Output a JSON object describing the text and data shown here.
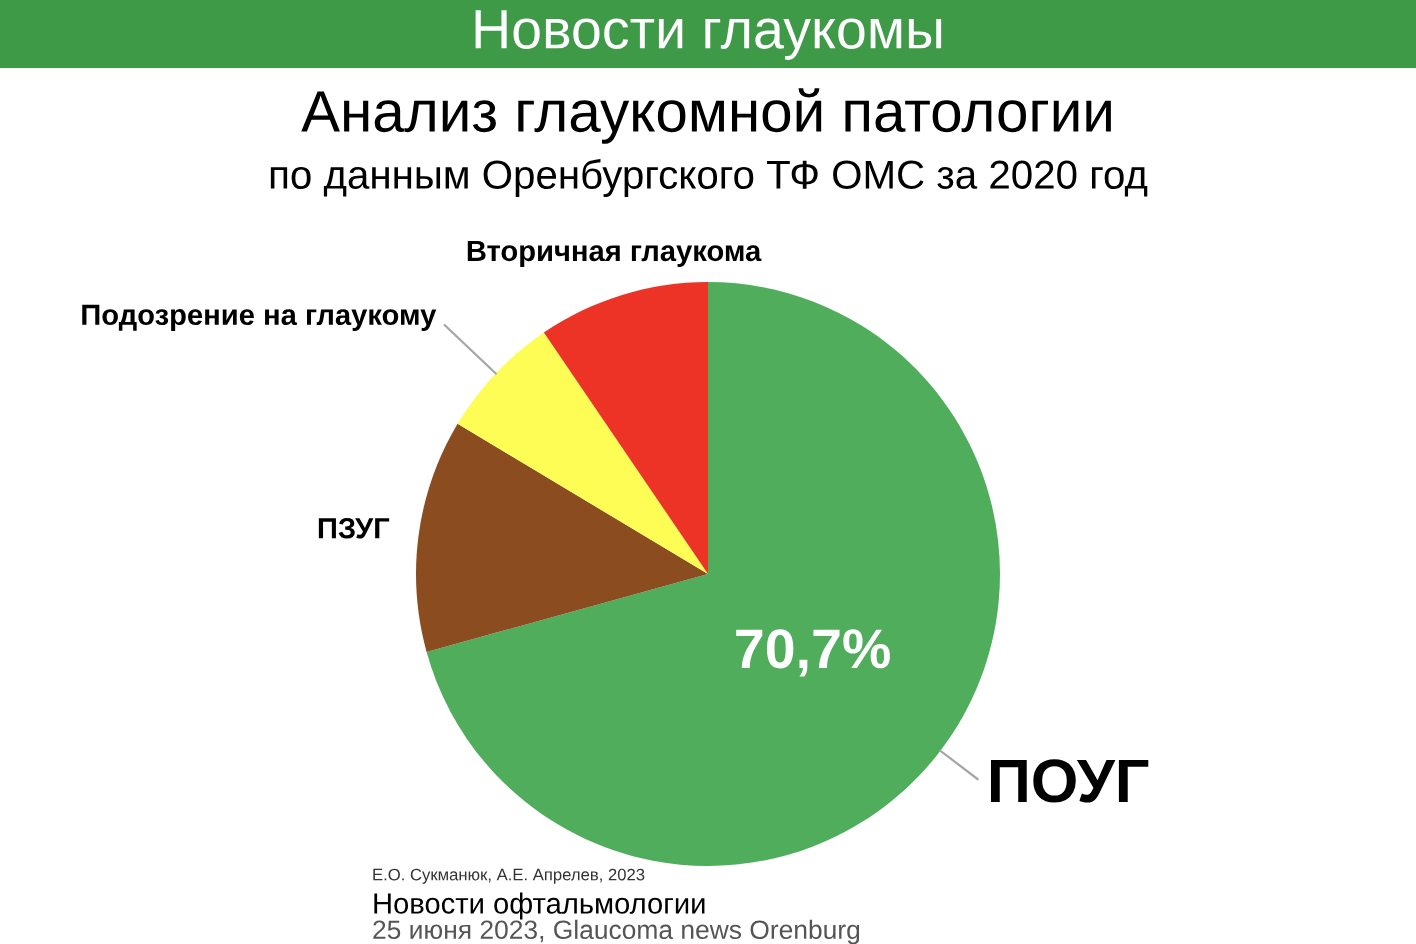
{
  "chart_data": {
    "type": "pie",
    "title": "Анализ глаукомной патологии",
    "subtitle": "по данным Оренбургского ТФ ОМС за 2020 год",
    "categories": [
      "ПОУГ",
      "ПЗУГ",
      "Подозрение на глаукому",
      "Вторичная глаукома"
    ],
    "values": [
      70.7,
      12.9,
      6.9,
      9.5
    ],
    "colors": [
      "#4fad5b",
      "#8b4c1f",
      "#fdfd55",
      "#ec3326"
    ],
    "value_labels": [
      "70,7%",
      null,
      null,
      null
    ],
    "annotations": [
      "Новости глаукомы",
      "Е.О. Сукманюк, А.Е. Апрелев, 2023",
      "Новости офтальмологии",
      "25 июня 2023, Glaucoma news Orenburg"
    ]
  }
}
